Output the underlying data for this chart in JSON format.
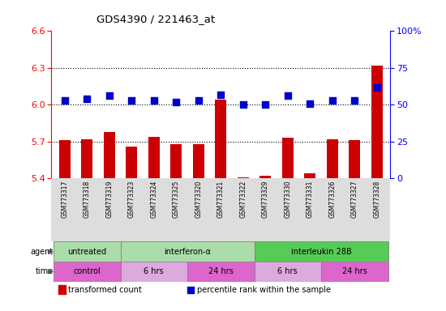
{
  "title": "GDS4390 / 221463_at",
  "samples": [
    "GSM773317",
    "GSM773318",
    "GSM773319",
    "GSM773323",
    "GSM773324",
    "GSM773325",
    "GSM773320",
    "GSM773321",
    "GSM773322",
    "GSM773329",
    "GSM773330",
    "GSM773331",
    "GSM773326",
    "GSM773327",
    "GSM773328"
  ],
  "transformed_count": [
    5.71,
    5.72,
    5.78,
    5.66,
    5.74,
    5.68,
    5.68,
    6.04,
    5.41,
    5.42,
    5.73,
    5.44,
    5.72,
    5.71,
    6.32
  ],
  "percentile_rank": [
    53,
    54,
    56,
    53,
    53,
    52,
    53,
    57,
    50,
    50,
    56,
    51,
    53,
    53,
    62
  ],
  "ylim_left": [
    5.4,
    6.6
  ],
  "ylim_right": [
    0,
    100
  ],
  "yticks_left": [
    5.4,
    5.7,
    6.0,
    6.3,
    6.6
  ],
  "yticks_right": [
    0,
    25,
    50,
    75,
    100
  ],
  "ytick_labels_right": [
    "0",
    "25",
    "50",
    "75",
    "100%"
  ],
  "hlines": [
    5.7,
    6.0,
    6.3
  ],
  "bar_color": "#cc0000",
  "dot_color": "#0000cc",
  "agent_groups": [
    {
      "label": "untreated",
      "start": 0,
      "end": 3,
      "color": "#aaddaa"
    },
    {
      "label": "interferon-α",
      "start": 3,
      "end": 9,
      "color": "#aaddaa"
    },
    {
      "label": "interleukin 28B",
      "start": 9,
      "end": 15,
      "color": "#55cc55"
    }
  ],
  "time_groups": [
    {
      "label": "control",
      "start": 0,
      "end": 3,
      "color": "#dd66cc"
    },
    {
      "label": "6 hrs",
      "start": 3,
      "end": 6,
      "color": "#ddaadd"
    },
    {
      "label": "24 hrs",
      "start": 6,
      "end": 9,
      "color": "#dd66cc"
    },
    {
      "label": "6 hrs",
      "start": 9,
      "end": 12,
      "color": "#ddaadd"
    },
    {
      "label": "24 hrs",
      "start": 12,
      "end": 15,
      "color": "#dd66cc"
    }
  ],
  "legend_items": [
    {
      "color": "#cc0000",
      "label": "transformed count"
    },
    {
      "color": "#0000cc",
      "label": "percentile rank within the sample"
    }
  ],
  "bar_width": 0.5,
  "dot_size": 35,
  "tick_bg_color": "#dddddd"
}
